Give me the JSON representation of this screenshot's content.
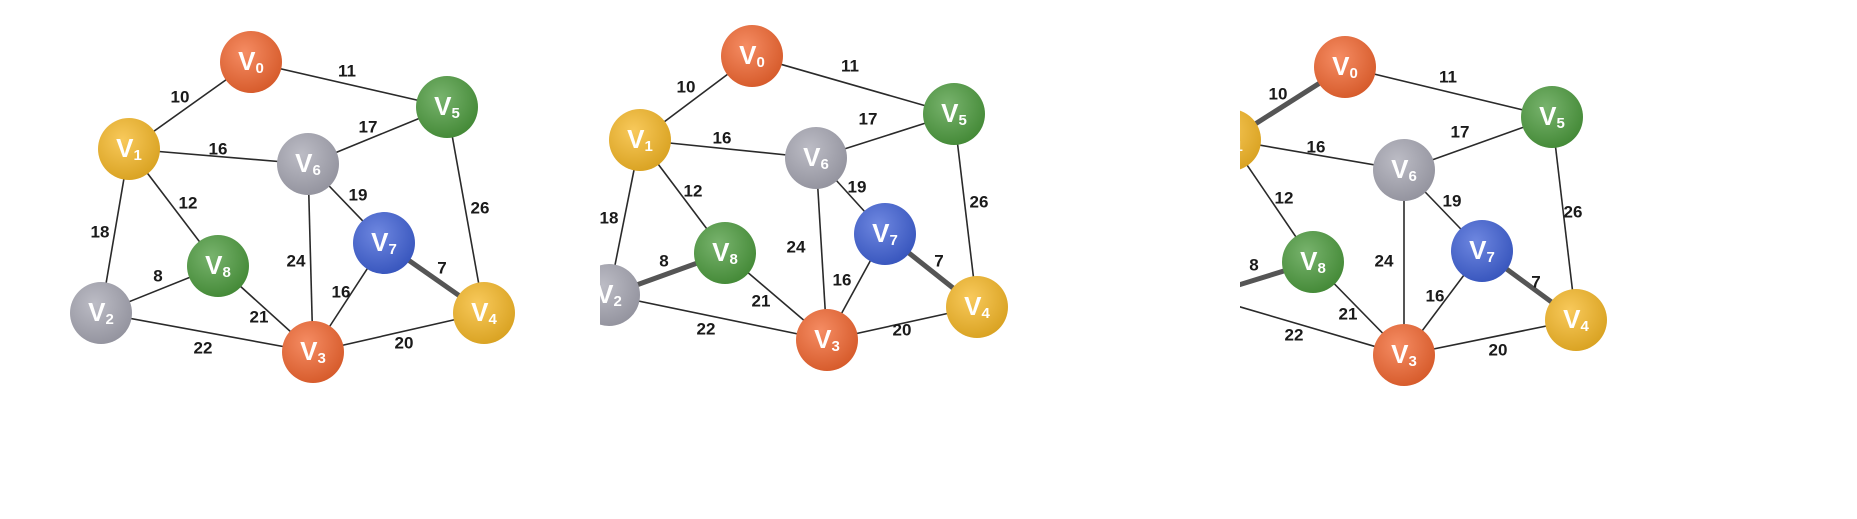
{
  "colors": {
    "orange": "#f2652f",
    "yellow": "#f5b724",
    "green": "#4b9a3c",
    "gray": "#a6a6b2",
    "blue": "#3d5fd6"
  },
  "vertices": [
    {
      "id": "v0",
      "letter": "V",
      "sub": "0",
      "color": "orange"
    },
    {
      "id": "v1",
      "letter": "V",
      "sub": "1",
      "color": "yellow"
    },
    {
      "id": "v2",
      "letter": "V",
      "sub": "2",
      "color": "gray"
    },
    {
      "id": "v3",
      "letter": "V",
      "sub": "3",
      "color": "orange"
    },
    {
      "id": "v4",
      "letter": "V",
      "sub": "4",
      "color": "yellow"
    },
    {
      "id": "v5",
      "letter": "V",
      "sub": "5",
      "color": "green"
    },
    {
      "id": "v6",
      "letter": "V",
      "sub": "6",
      "color": "gray"
    },
    {
      "id": "v7",
      "letter": "V",
      "sub": "7",
      "color": "blue"
    },
    {
      "id": "v8",
      "letter": "V",
      "sub": "8",
      "color": "green"
    }
  ],
  "edges": [
    {
      "from": "v0",
      "to": "v1",
      "weight": "10"
    },
    {
      "from": "v0",
      "to": "v5",
      "weight": "11"
    },
    {
      "from": "v1",
      "to": "v6",
      "weight": "16"
    },
    {
      "from": "v1",
      "to": "v8",
      "weight": "12"
    },
    {
      "from": "v1",
      "to": "v2",
      "weight": "18"
    },
    {
      "from": "v5",
      "to": "v6",
      "weight": "17"
    },
    {
      "from": "v5",
      "to": "v4",
      "weight": "26"
    },
    {
      "from": "v6",
      "to": "v7",
      "weight": "19"
    },
    {
      "from": "v6",
      "to": "v3",
      "weight": "24"
    },
    {
      "from": "v7",
      "to": "v4",
      "weight": "7"
    },
    {
      "from": "v7",
      "to": "v3",
      "weight": "16"
    },
    {
      "from": "v2",
      "to": "v8",
      "weight": "8"
    },
    {
      "from": "v2",
      "to": "v3",
      "weight": "22"
    },
    {
      "from": "v8",
      "to": "v3",
      "weight": "21"
    },
    {
      "from": "v3",
      "to": "v4",
      "weight": "20"
    }
  ],
  "panels": [
    {
      "id": "panel-1",
      "highlighted_edges": [
        "v7-v4"
      ]
    },
    {
      "id": "panel-2",
      "highlighted_edges": [
        "v7-v4",
        "v2-v8"
      ]
    },
    {
      "id": "panel-3",
      "highlighted_edges": [
        "v7-v4",
        "v2-v8",
        "v0-v1"
      ]
    }
  ]
}
